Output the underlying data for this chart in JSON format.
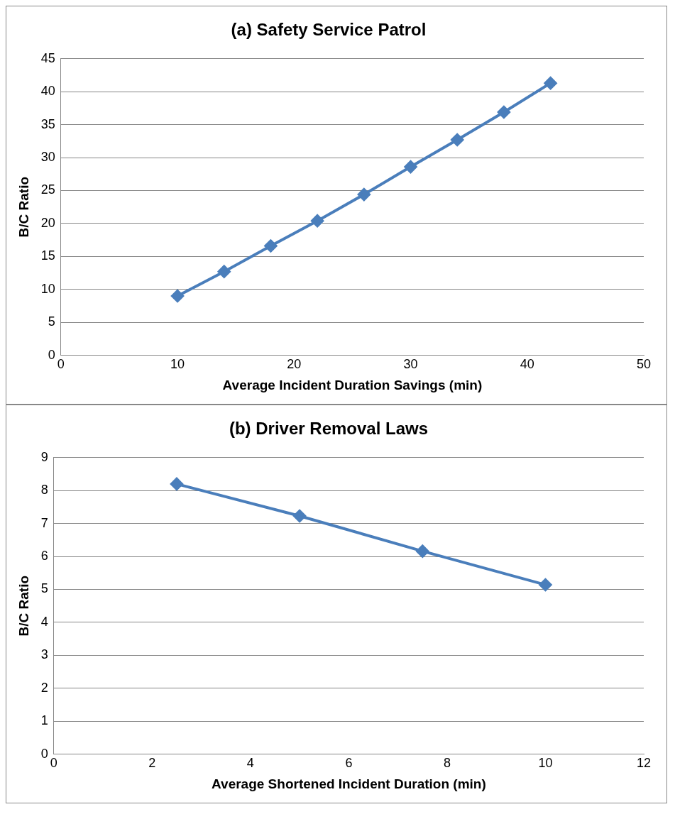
{
  "chart_data": [
    {
      "type": "line",
      "title": "(a) Safety Service Patrol",
      "xlabel": "Average Incident Duration Savings (min)",
      "ylabel": "B/C Ratio",
      "x": [
        10,
        14,
        18,
        22,
        26,
        30,
        34,
        38,
        42
      ],
      "series": [
        {
          "color": "#4a7ebb",
          "values": [
            9.0,
            12.7,
            16.6,
            20.4,
            24.4,
            28.6,
            32.7,
            36.9,
            41.3
          ]
        }
      ],
      "xlim": [
        0,
        50
      ],
      "xticks": [
        0,
        10,
        20,
        30,
        40,
        50
      ],
      "ylim": [
        0,
        45
      ],
      "yticks": [
        0,
        5,
        10,
        15,
        20,
        25,
        30,
        35,
        40,
        45
      ],
      "grid": "y",
      "legend": false,
      "marker": "diamond",
      "line_style": "solid"
    },
    {
      "type": "line",
      "title": "(b) Driver Removal Laws",
      "xlabel": "Average Shortened Incident Duration (min)",
      "ylabel": "B/C Ratio",
      "x": [
        2.5,
        5,
        7.5,
        10
      ],
      "series": [
        {
          "color": "#4a7ebb",
          "values": [
            8.2,
            7.23,
            6.16,
            5.14
          ]
        }
      ],
      "xlim": [
        0,
        12
      ],
      "xticks": [
        0,
        2,
        4,
        6,
        8,
        10,
        12
      ],
      "ylim": [
        0,
        9
      ],
      "yticks": [
        0,
        1,
        2,
        3,
        4,
        5,
        6,
        7,
        8,
        9
      ],
      "grid": "y",
      "legend": false,
      "marker": "diamond",
      "line_style": "solid"
    }
  ]
}
